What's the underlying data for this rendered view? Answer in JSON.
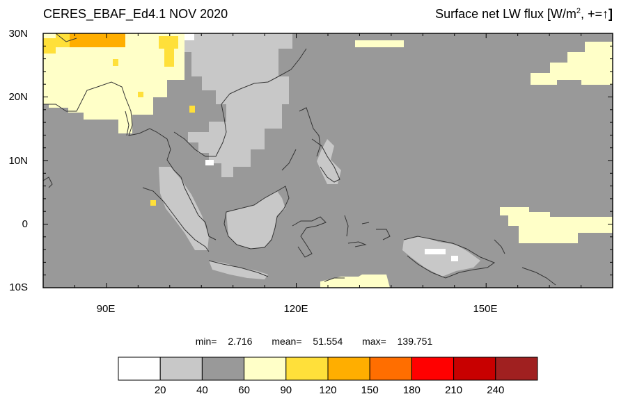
{
  "title_left": "CERES_EBAF_Ed4.1 NOV 2020",
  "title_right": {
    "prefix": "Surface net LW flux [W/m",
    "sup": "2",
    "suffix": ", +=",
    "arrow": "↑",
    "close": "]"
  },
  "axes": {
    "y_labels": [
      "30N",
      "20N",
      "10N",
      "0",
      "10S"
    ],
    "x_labels": [
      "90E",
      "120E",
      "150E"
    ],
    "lon_range": [
      80,
      170
    ],
    "lat_range": [
      -10,
      30
    ]
  },
  "stats": {
    "min_label": "min=",
    "min": "2.716",
    "mean_label": "mean=",
    "mean": "51.554",
    "max_label": "max=",
    "max": "139.751"
  },
  "colorbar": {
    "levels": [
      "20",
      "40",
      "60",
      "90",
      "120",
      "150",
      "180",
      "210",
      "240"
    ],
    "colors": [
      "#ffffff",
      "#c8c8c8",
      "#999999",
      "#ffffc8",
      "#ffe03a",
      "#ffae00",
      "#ff6e00",
      "#ff0000",
      "#c80000",
      "#a02020"
    ]
  }
}
